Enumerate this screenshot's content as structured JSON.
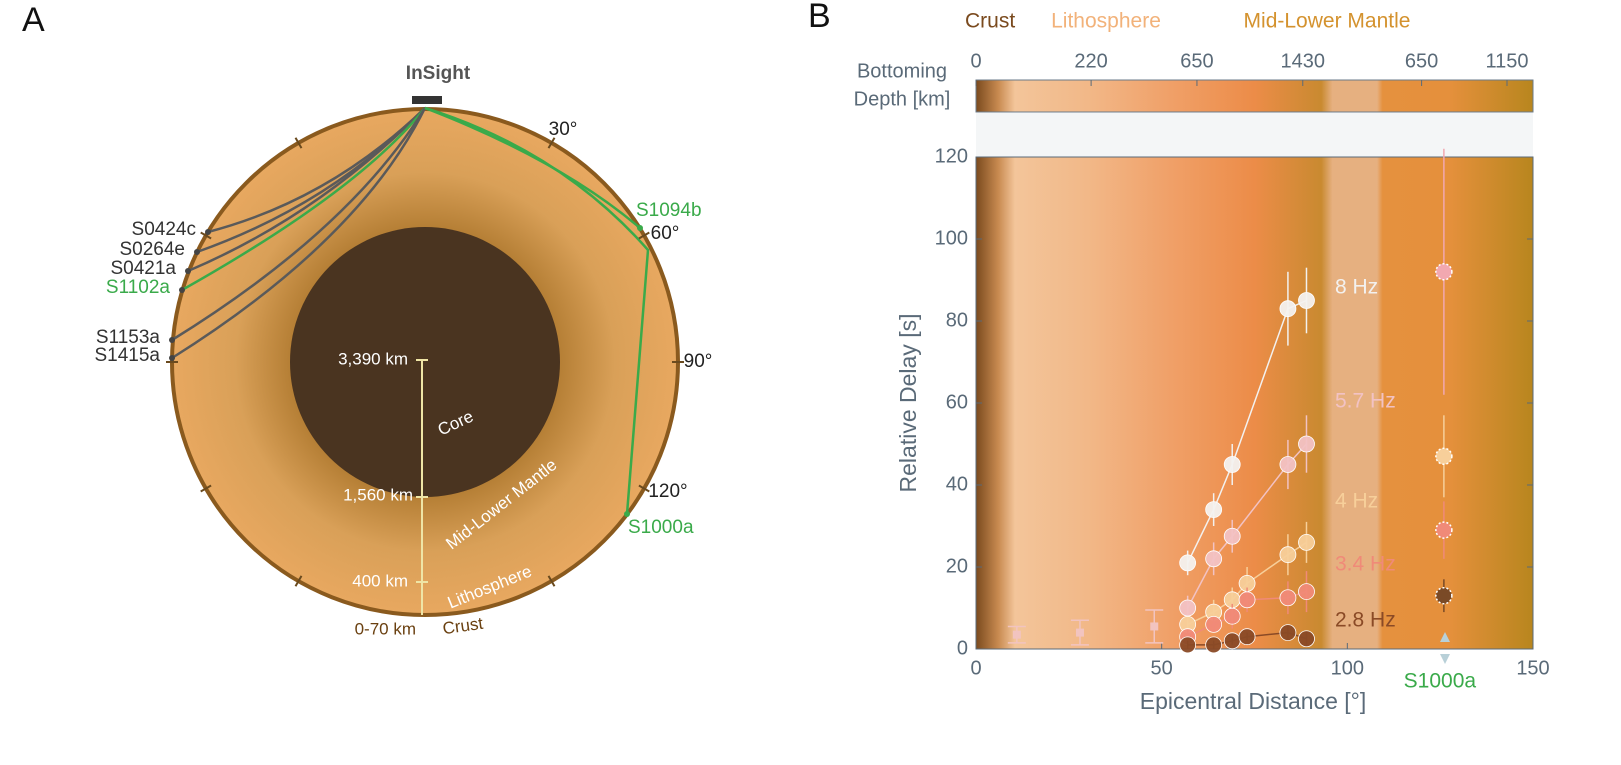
{
  "panel_a": {
    "label": "A",
    "station": "InSight",
    "angles": [
      "30°",
      "60°",
      "90°",
      "120°"
    ],
    "events": [
      {
        "name": "S0424c",
        "color": "#333333"
      },
      {
        "name": "S0264e",
        "color": "#333333"
      },
      {
        "name": "S0421a",
        "color": "#333333"
      },
      {
        "name": "S1102a",
        "color": "#3aaa4a"
      },
      {
        "name": "S1153a",
        "color": "#333333"
      },
      {
        "name": "S1415a",
        "color": "#333333"
      },
      {
        "name": "S1094b",
        "color": "#3aaa4a"
      },
      {
        "name": "S1000a",
        "color": "#3aaa4a"
      }
    ],
    "depths": [
      "3,390 km",
      "1,560 km",
      "400 km",
      "0-70 km"
    ],
    "layers": [
      "Core",
      "Mid-Lower Mantle",
      "Lithosphere",
      "Crust"
    ]
  },
  "chart_data": {
    "type": "line",
    "panel_label": "B",
    "xlabel": "Epicentral Distance [°]",
    "ylabel": "Relative Delay [s]",
    "xlim": [
      0,
      150
    ],
    "xticks": [
      0,
      50,
      100,
      150
    ],
    "ylim": [
      0,
      120
    ],
    "yticks": [
      0,
      20,
      40,
      60,
      80,
      100,
      120
    ],
    "top_axis_label": [
      "Bottoming",
      "Depth [km]"
    ],
    "top_ticks": [
      {
        "value": 0,
        "label": "0"
      },
      {
        "value": 31,
        "label": "220"
      },
      {
        "value": 59.5,
        "label": "650"
      },
      {
        "value": 88,
        "label": "1430"
      },
      {
        "value": 120,
        "label": "650"
      },
      {
        "value": 143,
        "label": "1150"
      }
    ],
    "regions": [
      {
        "name": "Crust",
        "color": "#7a4a1e"
      },
      {
        "name": "Lithosphere",
        "color": "#f2b27a"
      },
      {
        "name": "Mid-Lower Mantle",
        "color": "#d4922e"
      }
    ],
    "series": [
      {
        "name": "8 Hz",
        "color": "#f3f1ef",
        "x": [
          57,
          64,
          69,
          84,
          89
        ],
        "values": [
          21,
          34,
          45,
          83,
          85
        ],
        "errors": [
          3,
          4,
          5,
          9,
          8
        ]
      },
      {
        "name": "5.7 Hz",
        "color": "#f2c2c4",
        "x": [
          57,
          64,
          69,
          84,
          89
        ],
        "values": [
          10,
          22,
          27.5,
          45,
          50
        ],
        "errors": [
          3,
          4,
          4,
          6,
          7
        ]
      },
      {
        "name": "4 Hz",
        "color": "#f7cf9a",
        "x": [
          57,
          64,
          69,
          73,
          84,
          89
        ],
        "values": [
          6,
          9,
          12,
          16,
          23,
          26
        ],
        "errors": [
          2,
          3,
          3,
          4,
          5,
          5
        ]
      },
      {
        "name": "3.4 Hz",
        "color": "#f08a78",
        "x": [
          57,
          64,
          69,
          73,
          84,
          89
        ],
        "values": [
          3,
          6,
          8,
          12,
          12.5,
          14
        ],
        "errors": [
          2,
          2,
          3,
          3,
          4,
          5
        ]
      },
      {
        "name": "2.8 Hz",
        "color": "#8a4a26",
        "x": [
          57,
          64,
          69,
          73,
          84,
          89
        ],
        "values": [
          1,
          1,
          2,
          3,
          4,
          2.5
        ],
        "errors": [
          1,
          1,
          1,
          1,
          2,
          2
        ]
      }
    ],
    "reference": {
      "color": "#f2c4c0",
      "x": [
        11,
        28,
        48
      ],
      "values": [
        3.5,
        4,
        5.5
      ],
      "errors": [
        2,
        3,
        4
      ]
    },
    "s1000a": {
      "label": "S1000a",
      "label_color": "#3aaa4a",
      "x": 126,
      "values": [
        92,
        47,
        29,
        13
      ],
      "errors": [
        30,
        10,
        7,
        4
      ],
      "colors": [
        "#f2a8b0",
        "#f7cf9a",
        "#f08a78",
        "#7a4a26"
      ]
    }
  }
}
